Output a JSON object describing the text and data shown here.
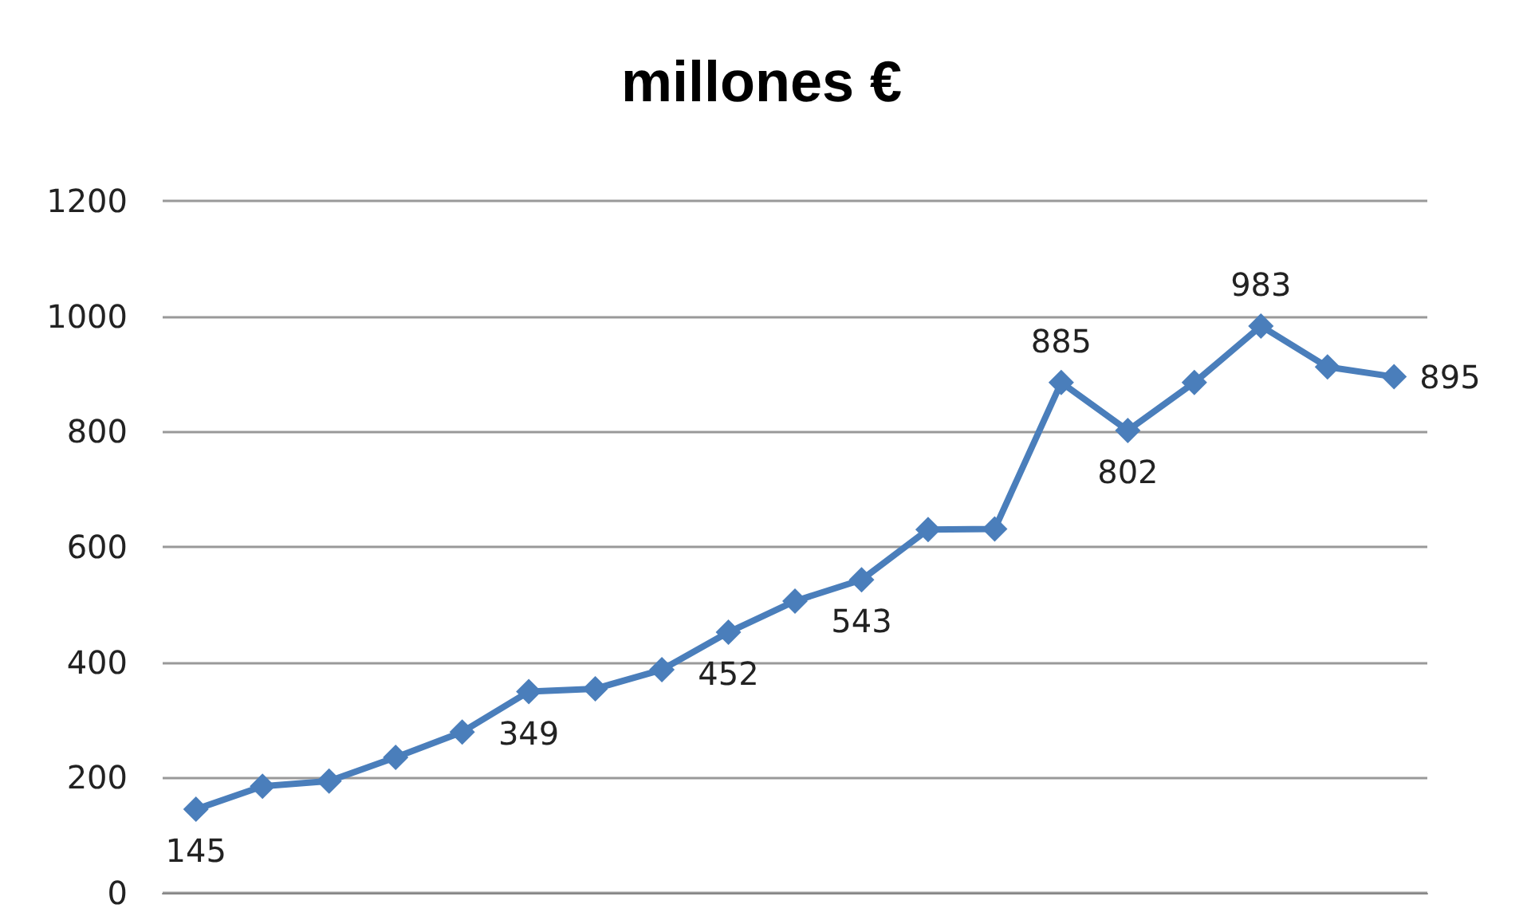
{
  "chart_data": {
    "type": "line",
    "title": "millones €",
    "categories": [
      null,
      null,
      null,
      null,
      null,
      null,
      null,
      null,
      null,
      null,
      null,
      null,
      null,
      null,
      null,
      null,
      null,
      null,
      null
    ],
    "series": [
      {
        "color": "#4a7ebb",
        "values": [
          145,
          185,
          194,
          235,
          279,
          349,
          354,
          387,
          452,
          506,
          543,
          630,
          631,
          885,
          802,
          885,
          983,
          912,
          895
        ],
        "value_labels": [
          "145",
          null,
          null,
          null,
          null,
          "349",
          null,
          null,
          "452",
          null,
          "543",
          null,
          null,
          "885",
          "802",
          null,
          "983",
          null,
          "895"
        ]
      }
    ],
    "ylim": [
      0,
      1200
    ],
    "yticks": [
      0,
      200,
      400,
      600,
      800,
      1000,
      1200
    ],
    "grid": "y",
    "marker": "diamond",
    "line_style": "solid"
  }
}
